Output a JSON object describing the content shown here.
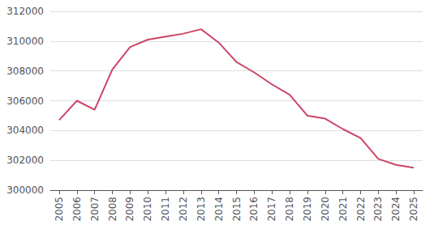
{
  "chart_data": {
    "type": "line",
    "x": [
      2005,
      2006,
      2007,
      2008,
      2009,
      2010,
      2011,
      2012,
      2013,
      2014,
      2015,
      2016,
      2017,
      2018,
      2019,
      2020,
      2021,
      2022,
      2023,
      2024,
      2025
    ],
    "values": [
      304700,
      306000,
      305400,
      308100,
      309600,
      310100,
      310300,
      310500,
      310800,
      309900,
      308600,
      307900,
      307100,
      306400,
      305000,
      304800,
      304100,
      303500,
      302100,
      301700,
      301500
    ],
    "color": "#cc4466",
    "xlim": [
      2004.5,
      2025.5
    ],
    "xticks": [
      2005,
      2006,
      2007,
      2008,
      2009,
      2010,
      2011,
      2012,
      2013,
      2014,
      2015,
      2016,
      2017,
      2018,
      2019,
      2020,
      2021,
      2022,
      2023,
      2024,
      2025
    ],
    "ylim": [
      300000,
      312000
    ],
    "yticks": [
      300000,
      302000,
      304000,
      306000,
      308000,
      310000,
      312000
    ],
    "grid": true
  }
}
